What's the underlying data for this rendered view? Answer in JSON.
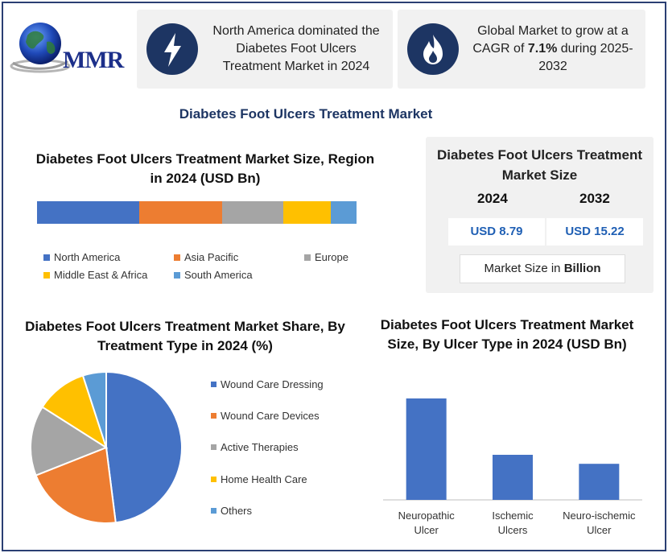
{
  "brand": {
    "name": "MMR"
  },
  "cards": {
    "region_card": {
      "icon": "lightning-bolt-icon",
      "text": "North America dominated the Diabetes Foot Ulcers Treatment Market in 2024"
    },
    "cagr_card": {
      "icon": "flame-icon",
      "text_before": "Global Market to grow at a CAGR of ",
      "cagr": "7.1%",
      "text_after": " during 2025-2032"
    }
  },
  "main_title": "Diabetes Foot Ulcers Treatment Market",
  "market_size": {
    "title": "Diabetes Foot Ulcers Treatment Market Size",
    "year_a": "2024",
    "year_b": "2032",
    "value_a": "USD 8.79",
    "value_b": "USD 15.22",
    "unit_prefix": "Market Size in ",
    "unit_bold": "Billion"
  },
  "colors": {
    "blue": "#4472c4",
    "orange": "#ed7d31",
    "gray": "#a5a5a5",
    "yellow": "#ffc000",
    "lightblue": "#5b9bd5",
    "navy": "#1d3563"
  },
  "chart_data": [
    {
      "type": "bar",
      "orientation": "stacked-horizontal",
      "title": "Diabetes Foot Ulcers Treatment Market Size, Region in 2024 (USD Bn)",
      "categories": [
        "2024"
      ],
      "series": [
        {
          "name": "North America",
          "values": [
            32
          ],
          "color": "#4472c4"
        },
        {
          "name": "Asia Pacific",
          "values": [
            26
          ],
          "color": "#ed7d31"
        },
        {
          "name": "Europe",
          "values": [
            19
          ],
          "color": "#a5a5a5"
        },
        {
          "name": "Middle East & Africa",
          "values": [
            15
          ],
          "color": "#ffc000"
        },
        {
          "name": "South America",
          "values": [
            8
          ],
          "color": "#5b9bd5"
        }
      ],
      "legend": "bottom"
    },
    {
      "type": "pie",
      "title": "Diabetes Foot Ulcers Treatment Market Share, By Treatment Type in 2024 (%)",
      "categories": [
        "Wound Care Dressing",
        "Wound Care Devices",
        "Active Therapies",
        "Home Health Care",
        "Others"
      ],
      "values": [
        48,
        21,
        15,
        11,
        5
      ],
      "colors": [
        "#4472c4",
        "#ed7d31",
        "#a5a5a5",
        "#ffc000",
        "#5b9bd5"
      ],
      "legend": "right"
    },
    {
      "type": "bar",
      "title": "Diabetes Foot Ulcers Treatment Market Size, By Ulcer Type in 2024 (USD Bn)",
      "categories": [
        "Neuropathic Ulcer",
        "Ischemic Ulcers",
        "Neuro-ischemic Ulcer"
      ],
      "values": [
        4.5,
        2.0,
        1.6
      ],
      "ylim": [
        0,
        5
      ],
      "color": "#4472c4",
      "grid": false
    }
  ]
}
